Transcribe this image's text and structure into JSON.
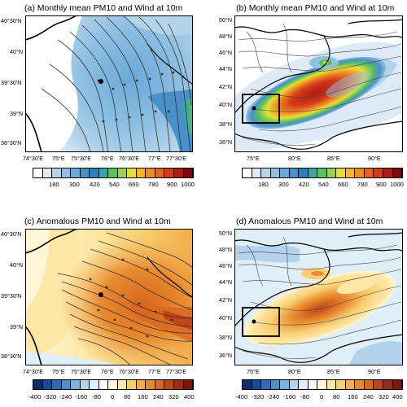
{
  "panels": {
    "a": {
      "title": "(a) Monthly mean PM10 and Wind at 10m",
      "lat_labels": [
        "40°30'N",
        "40°N",
        "39°30'N",
        "39°N",
        "38°30'N"
      ],
      "lon_labels": [
        "74°30'E",
        "75°E",
        "75°30'E",
        "76°E",
        "76°30'E",
        "77°E",
        "77°30'E"
      ],
      "colorbar_labels": [
        "180",
        "300",
        "420",
        "540",
        "660",
        "780",
        "900",
        "1000"
      ]
    },
    "b": {
      "title": "(b) Monthly mean PM10 and Wind at 10m",
      "lat_labels": [
        "50°N",
        "48°N",
        "46°N",
        "44°N",
        "42°N",
        "40°N",
        "38°N",
        "36°N"
      ],
      "lon_labels": [
        "75°E",
        "80°E",
        "85°E",
        "90°E"
      ],
      "colorbar_labels": [
        "180",
        "300",
        "420",
        "540",
        "660",
        "780",
        "900",
        "1000"
      ]
    },
    "c": {
      "title": "(c) Anomalous PM10 and Wind at 10m",
      "lat_labels": [
        "40°30'N",
        "40°N",
        "39°30'N",
        "39°N",
        "38°30'N"
      ],
      "lon_labels": [
        "74°30'E",
        "75°E",
        "75°30'E",
        "76°E",
        "76°30'E",
        "77°E",
        "77°30'E"
      ],
      "colorbar_labels": [
        "-400",
        "-320",
        "-240",
        "-160",
        "-80",
        "0",
        "80",
        "160",
        "240",
        "320",
        "400"
      ]
    },
    "d": {
      "title": "(d) Anomalous PM10 and Wind at 10m",
      "lat_labels": [
        "50°N",
        "48°N",
        "46°N",
        "44°N",
        "42°N",
        "40°N",
        "38°N",
        "36°N"
      ],
      "lon_labels": [
        "75°E",
        "80°E",
        "85°E",
        "90°E"
      ],
      "colorbar_labels": [
        "-400",
        "-320",
        "-240",
        "-160",
        "-80",
        "0",
        "80",
        "160",
        "240",
        "320",
        "400"
      ]
    }
  },
  "colors": {
    "mean_scale": [
      "#ffffff",
      "#deebf7",
      "#b3d4ea",
      "#8fc0e2",
      "#6aa9d8",
      "#4a90c8",
      "#2f7fc0",
      "#3aa7a0",
      "#5bbf5e",
      "#9fd24c",
      "#e5df3a",
      "#f5b52c",
      "#f08a22",
      "#e8611c",
      "#d63a1a",
      "#b01b14",
      "#7a0c0c"
    ],
    "anomaly_scale": [
      "#0a2f6e",
      "#174a94",
      "#2d6bb4",
      "#4e8fcb",
      "#7fb3dd",
      "#b3d3ec",
      "#e0eef8",
      "#ffffff",
      "#fff6d5",
      "#fde7a6",
      "#f8cf72",
      "#f2ad4c",
      "#e88a2f",
      "#d9661f",
      "#bf4516",
      "#9c2c10",
      "#7a1a0c"
    ],
    "border": "#000000",
    "streamline": "#333333"
  }
}
